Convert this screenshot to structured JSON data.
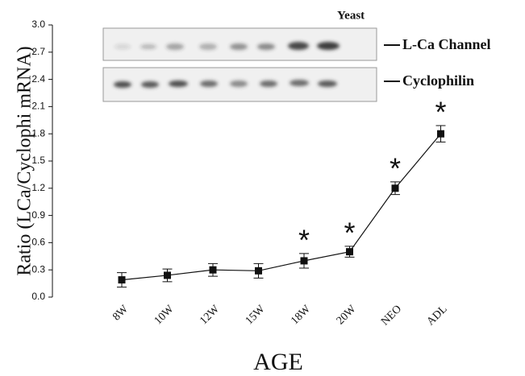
{
  "chart_data": {
    "type": "line",
    "y_label": "Ratio (LCa/Cyclophi mRNA)",
    "x_label": "AGE",
    "categories": [
      "8W",
      "10W",
      "12W",
      "15W",
      "18W",
      "20W",
      "NEO",
      "ADL"
    ],
    "series": [
      {
        "color": "#111111",
        "values": [
          0.19,
          0.24,
          0.3,
          0.29,
          0.4,
          0.5,
          1.2,
          1.8
        ],
        "errors": [
          0.08,
          0.07,
          0.07,
          0.08,
          0.08,
          0.06,
          0.07,
          0.09
        ]
      }
    ],
    "significance": [
      null,
      null,
      null,
      null,
      "*",
      "*",
      "*",
      "*"
    ],
    "ylim": [
      0,
      3
    ],
    "yticks": [
      {
        "value": 0,
        "label": "0.0"
      },
      0.3,
      0.6,
      0.9,
      1.2,
      1.5,
      1.8,
      2.1,
      2.4,
      2.7,
      {
        "value": 3,
        "label": "3.0"
      }
    ],
    "blot_labels": {
      "yeast": "Yeast",
      "top": "L-Ca Channel",
      "bottom": "Cyclophilin"
    }
  }
}
